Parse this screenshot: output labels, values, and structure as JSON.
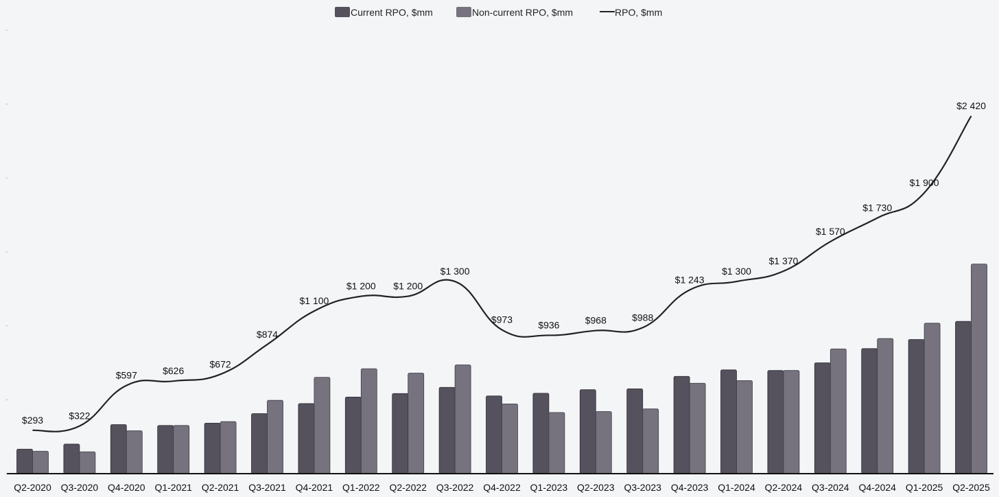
{
  "chart_data": {
    "type": "bar",
    "title": "",
    "xlabel": "",
    "ylabel": "",
    "ylim": [
      0,
      3000
    ],
    "grid": false,
    "legend_position": "top-center",
    "categories": [
      "Q2-2020",
      "Q3-2020",
      "Q4-2020",
      "Q1-2021",
      "Q2-2021",
      "Q3-2021",
      "Q4-2021",
      "Q1-2022",
      "Q2-2022",
      "Q3-2022",
      "Q4-2022",
      "Q1-2023",
      "Q2-2023",
      "Q3-2023",
      "Q4-2023",
      "Q1-2024",
      "Q2-2024",
      "Q3-2024",
      "Q4-2024",
      "Q1-2025",
      "Q2-2025"
    ],
    "series": [
      {
        "name": "Current RPO, $mm",
        "kind": "bar",
        "color": "#55525d",
        "values": [
          166,
          200,
          332,
          326,
          342,
          406,
          474,
          518,
          542,
          584,
          526,
          544,
          568,
          574,
          658,
          702,
          698,
          750,
          846,
          908,
          1030
        ]
      },
      {
        "name": "Non-current RPO, $mm",
        "kind": "bar",
        "color": "#76727e",
        "values": [
          152,
          148,
          290,
          326,
          352,
          496,
          652,
          710,
          680,
          736,
          472,
          414,
          420,
          438,
          612,
          630,
          698,
          844,
          914,
          1018,
          1418
        ]
      },
      {
        "name": "RPO, $mm",
        "kind": "line",
        "color": "#222222",
        "values": [
          293,
          322,
          597,
          626,
          672,
          874,
          1100,
          1200,
          1200,
          1300,
          973,
          936,
          968,
          988,
          1243,
          1300,
          1370,
          1570,
          1730,
          1900,
          2420
        ],
        "labels": [
          "$293",
          "$322",
          "$597",
          "$626",
          "$672",
          "$874",
          "$1 100",
          "$1 200",
          "$1 200",
          "$1 300",
          "$973",
          "$936",
          "$968",
          "$988",
          "$1 243",
          "$1 300",
          "$1 370",
          "$1 570",
          "$1 730",
          "$1 900",
          "$2 420"
        ]
      }
    ]
  }
}
